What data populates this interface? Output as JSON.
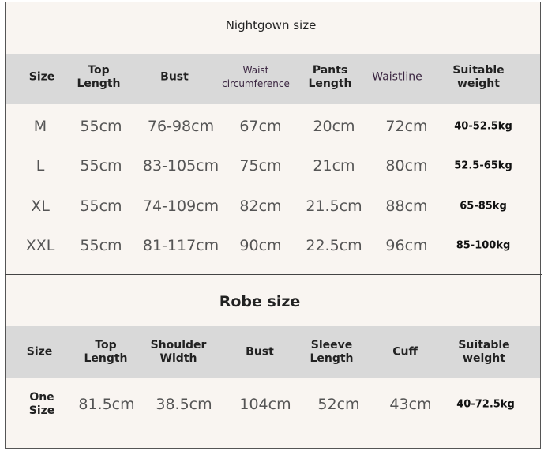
{
  "colors": {
    "background": "#f9f5f1",
    "header_band": "#d9d9d9",
    "border": "#555555"
  },
  "nightgown": {
    "title": "Nightgown size",
    "headers": [
      "Size",
      "Top\nLength",
      "Bust",
      "Waist\ncircumference",
      "Pants\nLength",
      "Waistline",
      "Suitable\nweight"
    ],
    "rows": [
      [
        "M",
        "55cm",
        "76-98cm",
        "67cm",
        "20cm",
        "72cm",
        "40-52.5kg"
      ],
      [
        "L",
        "55cm",
        "83-105cm",
        "75cm",
        "21cm",
        "80cm",
        "52.5-65kg"
      ],
      [
        "XL",
        "55cm",
        "74-109cm",
        "82cm",
        "21.5cm",
        "88cm",
        "65-85kg"
      ],
      [
        "XXL",
        "55cm",
        "81-117cm",
        "90cm",
        "22.5cm",
        "96cm",
        "85-100kg"
      ]
    ]
  },
  "robe": {
    "title": "Robe size",
    "headers": [
      "Size",
      "Top\nLength",
      "Shoulder\nWidth",
      "Bust",
      "Sleeve\nLength",
      "Cuff",
      "Suitable\nweight"
    ],
    "rows": [
      [
        "One\nSize",
        "81.5cm",
        "38.5cm",
        "104cm",
        "52cm",
        "43cm",
        "40-72.5kg"
      ]
    ]
  }
}
